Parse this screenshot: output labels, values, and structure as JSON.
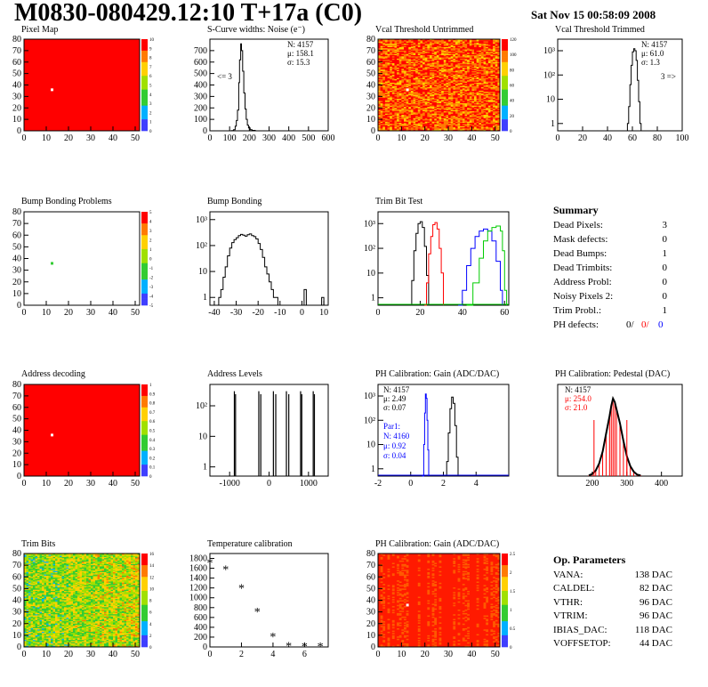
{
  "header": {
    "title": "M0830-080429.12:10 T+17a (C0)",
    "date": "Sat Nov 15 00:58:09 2008"
  },
  "colors": {
    "red": "#ff0000",
    "green": "#00cc00",
    "blue": "#0000ff",
    "map_red": "#ff0000",
    "map_orange": "#ff9900",
    "map_green": "#33cc33"
  },
  "summary": {
    "title": "Summary",
    "rows": [
      {
        "label": "Dead Pixels:",
        "value": "3"
      },
      {
        "label": "Mask defects:",
        "value": "0"
      },
      {
        "label": "Dead Bumps:",
        "value": "1"
      },
      {
        "label": "Dead Trimbits:",
        "value": "0"
      },
      {
        "label": "Address Probl:",
        "value": "0"
      },
      {
        "label": "Noisy Pixels 2:",
        "value": "0"
      },
      {
        "label": "Trim Probl.:",
        "value": "1"
      }
    ],
    "ph_label": "PH defects:",
    "ph_values": [
      "0/",
      "0/",
      "0"
    ]
  },
  "op_params": {
    "title": "Op. Parameters",
    "rows": [
      {
        "label": "VANA:",
        "value": "138 DAC"
      },
      {
        "label": "CALDEL:",
        "value": "82 DAC"
      },
      {
        "label": "VTHR:",
        "value": "96 DAC"
      },
      {
        "label": "VTRIM:",
        "value": "96 DAC"
      },
      {
        "label": "IBIAS_DAC:",
        "value": "118 DAC"
      },
      {
        "label": "VOFFSETOP:",
        "value": "44 DAC"
      }
    ]
  },
  "chart_data": [
    {
      "id": "pixel_map",
      "type": "heatmap",
      "title": "Pixel Map",
      "x_ticks": [
        "0",
        "10",
        "20",
        "30",
        "40",
        "50"
      ],
      "y_ticks": [
        "0",
        "10",
        "20",
        "30",
        "40",
        "50",
        "60",
        "70",
        "80"
      ],
      "xlim": [
        0,
        52
      ],
      "ylim": [
        0,
        80
      ],
      "fill": "uniform-red",
      "hot_pixel": {
        "x": 12,
        "y": 36
      },
      "z_ticks": [
        "10",
        "9",
        "8",
        "7",
        "6",
        "5",
        "4",
        "3",
        "2",
        "1",
        "0"
      ]
    },
    {
      "id": "noise",
      "type": "line",
      "title": "S-Curve widths: Noise (e⁻)",
      "x_ticks": [
        "0",
        "100",
        "200",
        "300",
        "400",
        "500",
        "600"
      ],
      "y_ticks": [
        "0",
        "100",
        "200",
        "300",
        "400",
        "500",
        "600",
        "700"
      ],
      "xlim": [
        0,
        600
      ],
      "ylim": [
        0,
        800
      ],
      "stats": [
        "N: 4157",
        "μ: 158.1",
        "σ: 15.3"
      ],
      "annotation": "<= 3",
      "points": [
        [
          100,
          0
        ],
        [
          110,
          2
        ],
        [
          120,
          10
        ],
        [
          128,
          40
        ],
        [
          134,
          90
        ],
        [
          140,
          180
        ],
        [
          146,
          420
        ],
        [
          150,
          620
        ],
        [
          156,
          760
        ],
        [
          160,
          700
        ],
        [
          166,
          520
        ],
        [
          172,
          330
        ],
        [
          178,
          190
        ],
        [
          184,
          100
        ],
        [
          190,
          50
        ],
        [
          196,
          25
        ],
        [
          204,
          10
        ],
        [
          214,
          4
        ],
        [
          230,
          0
        ]
      ]
    },
    {
      "id": "vcal_untrimmed",
      "type": "heatmap",
      "title": "Vcal Threshold Untrimmed",
      "x_ticks": [
        "0",
        "10",
        "20",
        "30",
        "40",
        "50"
      ],
      "y_ticks": [
        "0",
        "10",
        "20",
        "30",
        "40",
        "50",
        "60",
        "70",
        "80"
      ],
      "xlim": [
        0,
        52
      ],
      "ylim": [
        0,
        80
      ],
      "fill": "noisy-orange",
      "hot_pixel": {
        "x": 12,
        "y": 36
      },
      "z_ticks": [
        "120",
        "100",
        "80",
        "60",
        "40",
        "20",
        "0"
      ]
    },
    {
      "id": "vcal_trimmed",
      "type": "line",
      "title": "Vcal Threshold Trimmed",
      "log_y": true,
      "x_ticks": [
        "0",
        "20",
        "40",
        "60",
        "80",
        "100"
      ],
      "y_ticks": [
        "1",
        "10",
        "10²",
        "10³"
      ],
      "xlim": [
        0,
        100
      ],
      "ylim": [
        0.5,
        3000
      ],
      "stats": [
        "N: 4157",
        "μ: 61.0",
        "σ: 1.3"
      ],
      "annotation": "3 =>",
      "points": [
        [
          55,
          0.5
        ],
        [
          56,
          1
        ],
        [
          57,
          5
        ],
        [
          58,
          40
        ],
        [
          59,
          250
        ],
        [
          60,
          900
        ],
        [
          61,
          1200
        ],
        [
          62,
          1000
        ],
        [
          63,
          400
        ],
        [
          64,
          60
        ],
        [
          65,
          8
        ],
        [
          66,
          1
        ],
        [
          67,
          0.5
        ]
      ]
    },
    {
      "id": "bump_problems",
      "type": "heatmap",
      "title": "Bump Bonding Problems",
      "x_ticks": [
        "0",
        "10",
        "20",
        "30",
        "40",
        "50"
      ],
      "y_ticks": [
        "0",
        "10",
        "20",
        "30",
        "40",
        "50",
        "60",
        "70",
        "80"
      ],
      "xlim": [
        0,
        52
      ],
      "ylim": [
        0,
        80
      ],
      "fill": "empty",
      "hot_pixel": {
        "x": 12,
        "y": 36
      },
      "z_ticks": [
        "5",
        "4",
        "3",
        "2",
        "1",
        "0",
        "-1",
        "-2",
        "-3",
        "-4",
        "-5"
      ]
    },
    {
      "id": "bump_bonding",
      "type": "line",
      "title": "Bump Bonding",
      "log_y": true,
      "x_ticks": [
        "-40",
        "-30",
        "-20",
        "-10",
        "0",
        "10"
      ],
      "y_ticks": [
        "1",
        "10",
        "10²",
        "10³"
      ],
      "xlim": [
        -42,
        12
      ],
      "ylim": [
        0.5,
        2000
      ],
      "points": [
        [
          -39,
          0.5
        ],
        [
          -38,
          1
        ],
        [
          -37,
          2
        ],
        [
          -36,
          6
        ],
        [
          -35,
          15
        ],
        [
          -34,
          40
        ],
        [
          -33,
          80
        ],
        [
          -32,
          130
        ],
        [
          -31,
          170
        ],
        [
          -30,
          200
        ],
        [
          -29,
          240
        ],
        [
          -28,
          270
        ],
        [
          -27,
          250
        ],
        [
          -26,
          230
        ],
        [
          -25,
          260
        ],
        [
          -24,
          280
        ],
        [
          -23,
          240
        ],
        [
          -22,
          220
        ],
        [
          -21,
          180
        ],
        [
          -20,
          120
        ],
        [
          -19,
          70
        ],
        [
          -18,
          35
        ],
        [
          -17,
          15
        ],
        [
          -16,
          8
        ],
        [
          -15,
          4
        ],
        [
          -14,
          2
        ],
        [
          -13,
          1
        ],
        [
          -12,
          1
        ],
        [
          -11,
          0.5
        ],
        [
          0,
          0.5
        ],
        [
          1,
          2
        ],
        [
          2,
          0.5
        ],
        [
          8,
          0.5
        ],
        [
          9,
          1
        ],
        [
          10,
          0.5
        ]
      ]
    },
    {
      "id": "trim_bit",
      "type": "line",
      "title": "Trim Bit Test",
      "log_y": true,
      "x_ticks": [
        "0",
        "20",
        "40",
        "60"
      ],
      "y_ticks": [
        "1",
        "10",
        "10²",
        "10³"
      ],
      "xlim": [
        0,
        62
      ],
      "ylim": [
        0.5,
        3000
      ],
      "series_points": [
        {
          "color": "#000000",
          "points": [
            [
              15,
              0.5
            ],
            [
              16,
              5
            ],
            [
              17,
              80
            ],
            [
              18,
              400
            ],
            [
              19,
              1000
            ],
            [
              20,
              1200
            ],
            [
              21,
              700
            ],
            [
              22,
              120
            ],
            [
              23,
              8
            ],
            [
              24,
              0.5
            ]
          ]
        },
        {
          "color": "#ff0000",
          "points": [
            [
              22,
              0.5
            ],
            [
              23,
              4
            ],
            [
              24,
              60
            ],
            [
              25,
              300
            ],
            [
              26,
              900
            ],
            [
              27,
              1100
            ],
            [
              28,
              600
            ],
            [
              29,
              100
            ],
            [
              30,
              10
            ],
            [
              31,
              0.5
            ]
          ]
        },
        {
          "color": "#0000ff",
          "points": [
            [
              38,
              0.5
            ],
            [
              40,
              2
            ],
            [
              42,
              20
            ],
            [
              44,
              100
            ],
            [
              46,
              300
            ],
            [
              48,
              500
            ],
            [
              50,
              600
            ],
            [
              52,
              500
            ],
            [
              54,
              200
            ],
            [
              56,
              30
            ],
            [
              58,
              2
            ],
            [
              59,
              0.5
            ]
          ]
        },
        {
          "color": "#00cc00",
          "points": [
            [
              42,
              0.5
            ],
            [
              45,
              4
            ],
            [
              48,
              40
            ],
            [
              50,
              200
            ],
            [
              52,
              500
            ],
            [
              54,
              700
            ],
            [
              56,
              800
            ],
            [
              58,
              500
            ],
            [
              59,
              80
            ],
            [
              60,
              2
            ],
            [
              61,
              0.5
            ]
          ]
        }
      ]
    },
    {
      "id": "address_decoding",
      "type": "heatmap",
      "title": "Address decoding",
      "x_ticks": [
        "0",
        "10",
        "20",
        "30",
        "40",
        "50"
      ],
      "y_ticks": [
        "0",
        "10",
        "20",
        "30",
        "40",
        "50",
        "60",
        "70",
        "80"
      ],
      "xlim": [
        0,
        52
      ],
      "ylim": [
        0,
        80
      ],
      "fill": "uniform-red",
      "hot_pixel": {
        "x": 12,
        "y": 36
      },
      "z_ticks": [
        "1",
        "0.9",
        "0.8",
        "0.7",
        "0.6",
        "0.5",
        "0.4",
        "0.3",
        "0.2",
        "0.1",
        "0"
      ]
    },
    {
      "id": "address_levels",
      "type": "line",
      "title": "Address Levels",
      "log_y": true,
      "x_ticks": [
        "-1000",
        "0",
        "1000"
      ],
      "y_ticks": [
        "1",
        "10",
        "10²"
      ],
      "xlim": [
        -1500,
        1500
      ],
      "ylim": [
        0.5,
        500
      ],
      "spikes": [
        -880,
        -850,
        -260,
        -210,
        110,
        170,
        440,
        500,
        800,
        830,
        1120,
        1150
      ]
    },
    {
      "id": "ph_gain",
      "type": "line",
      "title": "PH Calibration: Gain (ADC/DAC)",
      "log_y": true,
      "x_ticks": [
        "-2",
        "0",
        "2",
        "4"
      ],
      "y_ticks": [
        "1",
        "10",
        "10²",
        "10³"
      ],
      "xlim": [
        -2,
        6
      ],
      "ylim": [
        0.5,
        3000
      ],
      "stats": [
        "N: 4157",
        "μ: 2.49",
        "σ: 0.07"
      ],
      "stats_blue": [
        "Par1:",
        "N: 4160",
        "μ: 0.92",
        "σ: 0.04"
      ],
      "series_points": [
        {
          "color": "#000000",
          "points": [
            [
              2.1,
              0.5
            ],
            [
              2.2,
              2
            ],
            [
              2.3,
              30
            ],
            [
              2.4,
              300
            ],
            [
              2.5,
              900
            ],
            [
              2.6,
              500
            ],
            [
              2.7,
              60
            ],
            [
              2.8,
              3
            ],
            [
              2.9,
              0.5
            ]
          ]
        },
        {
          "color": "#0000ff",
          "points": [
            [
              0.7,
              0.5
            ],
            [
              0.8,
              10
            ],
            [
              0.85,
              200
            ],
            [
              0.9,
              1200
            ],
            [
              0.95,
              800
            ],
            [
              1.0,
              100
            ],
            [
              1.05,
              6
            ],
            [
              1.1,
              0.5
            ]
          ]
        }
      ]
    },
    {
      "id": "ph_pedestal",
      "type": "bar",
      "title": "PH Calibration: Pedestal (DAC)",
      "x_ticks": [
        "200",
        "300",
        "400"
      ],
      "y_ticks": [],
      "xlim": [
        100,
        460
      ],
      "ylim": [
        0,
        130
      ],
      "stats": [
        "N: 4157"
      ],
      "stats_red": [
        "μ: 254.0",
        "σ: 21.0"
      ],
      "points": [
        [
          190,
          1
        ],
        [
          200,
          3
        ],
        [
          210,
          8
        ],
        [
          220,
          18
        ],
        [
          230,
          35
        ],
        [
          240,
          60
        ],
        [
          250,
          85
        ],
        [
          255,
          100
        ],
        [
          260,
          110
        ],
        [
          265,
          105
        ],
        [
          270,
          95
        ],
        [
          280,
          75
        ],
        [
          290,
          50
        ],
        [
          300,
          28
        ],
        [
          310,
          14
        ],
        [
          320,
          6
        ],
        [
          330,
          2
        ],
        [
          340,
          1
        ]
      ]
    },
    {
      "id": "trim_bits",
      "type": "heatmap",
      "title": "Trim Bits",
      "x_ticks": [
        "0",
        "10",
        "20",
        "30",
        "40",
        "50"
      ],
      "y_ticks": [
        "0",
        "10",
        "20",
        "30",
        "40",
        "50",
        "60",
        "70",
        "80"
      ],
      "xlim": [
        0,
        52
      ],
      "ylim": [
        0,
        80
      ],
      "fill": "noisy-green",
      "z_ticks": [
        "16",
        "14",
        "12",
        "10",
        "8",
        "6",
        "4",
        "2",
        "0"
      ]
    },
    {
      "id": "temperature",
      "type": "scatter",
      "title": "Temperature calibration",
      "x_ticks": [
        "0",
        "2",
        "4",
        "6"
      ],
      "y_ticks": [
        "0",
        "200",
        "400",
        "600",
        "800",
        "1000",
        "1200",
        "1400",
        "1600",
        "1800"
      ],
      "xlim": [
        0,
        7.5
      ],
      "ylim": [
        0,
        1900
      ],
      "points": [
        [
          0,
          1720
        ],
        [
          1,
          1580
        ],
        [
          2,
          1200
        ],
        [
          3,
          720
        ],
        [
          4,
          220
        ],
        [
          5,
          30
        ],
        [
          6,
          20
        ],
        [
          7,
          20
        ]
      ]
    },
    {
      "id": "ph_gain_map",
      "type": "heatmap",
      "title": "PH Calibration: Gain (ADC/DAC)",
      "x_ticks": [
        "0",
        "10",
        "20",
        "30",
        "40",
        "50"
      ],
      "y_ticks": [
        "0",
        "10",
        "20",
        "30",
        "40",
        "50",
        "60",
        "70",
        "80"
      ],
      "xlim": [
        0,
        52
      ],
      "ylim": [
        0,
        80
      ],
      "fill": "striped-red",
      "hot_pixel": {
        "x": 12,
        "y": 36
      },
      "z_ticks": [
        "2.5",
        "2",
        "1.5",
        "1",
        "0.5",
        "0"
      ]
    }
  ]
}
